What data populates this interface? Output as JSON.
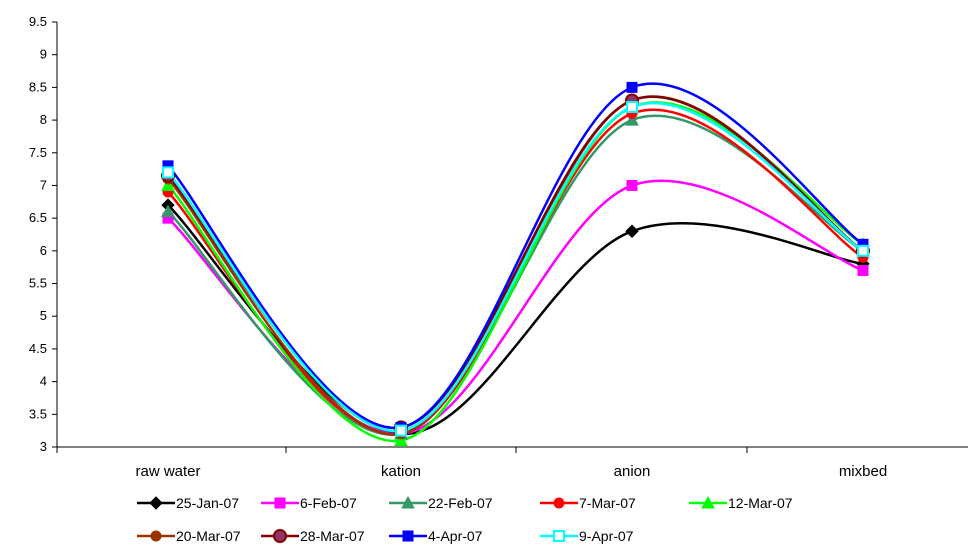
{
  "chart_data": {
    "type": "line",
    "smooth": true,
    "title": "",
    "xlabel": "",
    "ylabel": "",
    "categories": [
      "raw water",
      "kation",
      "anion",
      "mixbed"
    ],
    "ylim": [
      3,
      9.5
    ],
    "yticks": [
      "3",
      "3.5",
      "4",
      "4.5",
      "5",
      "5.5",
      "6",
      "6.5",
      "7",
      "7.5",
      "8",
      "8.5",
      "9",
      "9.5"
    ],
    "grid": false,
    "legend_position": "bottom",
    "series": [
      {
        "name": "25-Jan-07",
        "values": [
          6.7,
          3.2,
          6.3,
          5.8
        ],
        "color": "#000000",
        "marker": "diamond",
        "marker_fill": "#000000"
      },
      {
        "name": "6-Feb-07",
        "values": [
          6.5,
          3.2,
          7.0,
          5.7
        ],
        "color": "#ff00ff",
        "marker": "square",
        "marker_fill": "#ff00ff"
      },
      {
        "name": "22-Feb-07",
        "values": [
          6.6,
          3.2,
          8.0,
          6.0
        ],
        "color": "#339966",
        "marker": "triangle",
        "marker_fill": "#339966"
      },
      {
        "name": "7-Mar-07",
        "values": [
          6.9,
          3.2,
          8.1,
          5.9
        ],
        "color": "#ff0000",
        "marker": "circle",
        "marker_fill": "#ff0000"
      },
      {
        "name": "12-Mar-07",
        "values": [
          7.0,
          3.1,
          8.2,
          6.1
        ],
        "color": "#00ff00",
        "marker": "triangle",
        "marker_fill": "#00ff00"
      },
      {
        "name": "20-Mar-07",
        "values": [
          7.1,
          3.2,
          8.3,
          6.0
        ],
        "color": "#993300",
        "marker": "circle",
        "marker_fill": "#993300"
      },
      {
        "name": "28-Mar-07",
        "values": [
          7.15,
          3.3,
          8.3,
          6.0
        ],
        "color": "#800000",
        "marker": "circle-ring",
        "marker_fill": "#993366"
      },
      {
        "name": "4-Apr-07",
        "values": [
          7.3,
          3.3,
          8.5,
          6.1
        ],
        "color": "#0000ff",
        "marker": "square",
        "marker_fill": "#0000ff"
      },
      {
        "name": "9-Apr-07",
        "values": [
          7.2,
          3.25,
          8.2,
          6.0
        ],
        "color": "#00ffff",
        "marker": "square-open",
        "marker_fill": "#ffffff"
      }
    ]
  }
}
